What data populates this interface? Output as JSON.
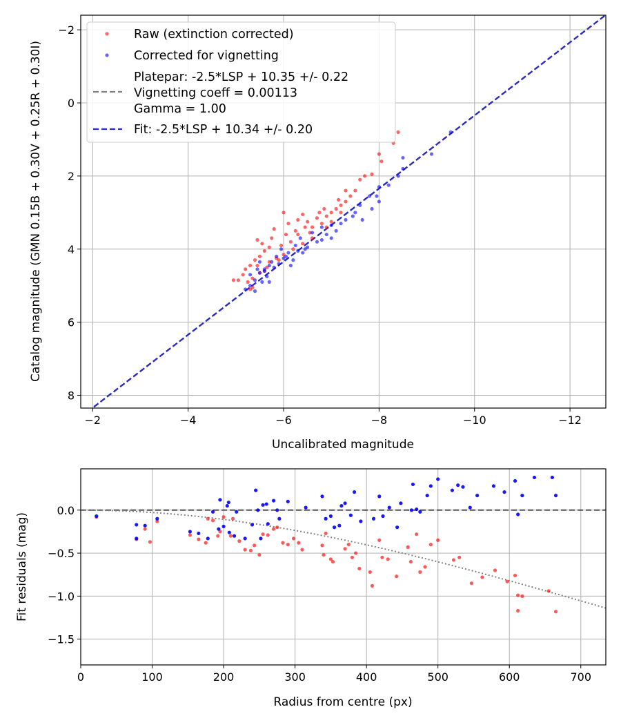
{
  "chart_data": [
    {
      "type": "scatter",
      "title": "",
      "xlabel": "Uncalibrated magnitude",
      "ylabel": "Catalog magnitude (GMN 0.15B + 0.30V + 0.25R + 0.30I)",
      "xlim": [
        -1.75,
        -12.75
      ],
      "ylim": [
        8.35,
        -2.4
      ],
      "xticks": [
        -2,
        -4,
        -6,
        -8,
        -10,
        -12
      ],
      "xtick_labels": [
        "−2",
        "−4",
        "−6",
        "−8",
        "−10",
        "−12"
      ],
      "yticks": [
        -2,
        0,
        2,
        4,
        6,
        8
      ],
      "ytick_labels": [
        "−2",
        "0",
        "2",
        "4",
        "6",
        "8"
      ],
      "grid": true,
      "legend_position": "top-left",
      "legend": {
        "raw": "Raw (extinction corrected)",
        "corrected": "Corrected for vignetting",
        "platepar_line1": "Platepar: -2.5*LSP + 10.35 +/- 0.22",
        "platepar_line2": "Vignetting coeff = 0.00113",
        "platepar_line3": "Gamma = 1.00",
        "fit": "Fit: -2.5*LSP + 10.34 +/- 0.20"
      },
      "fit_line": {
        "slope": 1.0,
        "intercept": 10.34,
        "x_range": [
          -1.75,
          -12.75
        ]
      },
      "colors": {
        "raw": "#ff0000",
        "corrected": "#0000ff",
        "platepar": "#808080",
        "fit": "#2828c8"
      },
      "series": [
        {
          "name": "raw",
          "points": [
            [
              -8.4,
              0.8
            ],
            [
              -8.3,
              1.1
            ],
            [
              -8.0,
              1.4
            ],
            [
              -8.05,
              1.6
            ],
            [
              -7.85,
              1.95
            ],
            [
              -7.7,
              2.0
            ],
            [
              -7.5,
              2.4
            ],
            [
              -7.4,
              2.55
            ],
            [
              -7.3,
              2.7
            ],
            [
              -7.2,
              2.8
            ],
            [
              -7.1,
              2.9
            ],
            [
              -7.0,
              3.0
            ],
            [
              -7.0,
              3.25
            ],
            [
              -6.9,
              3.1
            ],
            [
              -6.8,
              3.3
            ],
            [
              -6.75,
              3.0
            ],
            [
              -6.6,
              3.4
            ],
            [
              -6.5,
              3.25
            ],
            [
              -6.4,
              3.05
            ],
            [
              -6.3,
              3.2
            ],
            [
              -6.25,
              3.5
            ],
            [
              -6.1,
              3.3
            ],
            [
              -6.05,
              3.6
            ],
            [
              -6.0,
              3.0
            ],
            [
              -5.95,
              3.9
            ],
            [
              -5.8,
              3.45
            ],
            [
              -5.75,
              3.7
            ],
            [
              -5.7,
              3.95
            ],
            [
              -5.6,
              4.05
            ],
            [
              -5.55,
              3.85
            ],
            [
              -5.45,
              3.75
            ],
            [
              -5.5,
              4.2
            ],
            [
              -5.4,
              4.3
            ],
            [
              -5.3,
              4.45
            ],
            [
              -5.2,
              4.55
            ],
            [
              -5.15,
              4.7
            ],
            [
              -5.25,
              4.9
            ],
            [
              -5.05,
              4.85
            ],
            [
              -4.95,
              4.85
            ],
            [
              -5.35,
              5.05
            ],
            [
              -5.3,
              5.1
            ],
            [
              -5.6,
              4.6
            ],
            [
              -5.7,
              4.35
            ],
            [
              -5.85,
              4.25
            ],
            [
              -6.0,
              4.15
            ],
            [
              -6.15,
              3.8
            ],
            [
              -6.3,
              3.6
            ],
            [
              -6.45,
              3.4
            ],
            [
              -6.55,
              3.55
            ],
            [
              -6.7,
              3.15
            ],
            [
              -6.85,
              2.9
            ],
            [
              -7.15,
              2.65
            ],
            [
              -7.3,
              2.4
            ],
            [
              -7.6,
              2.1
            ],
            [
              -7.2,
              3.0
            ],
            [
              -6.9,
              3.4
            ],
            [
              -6.6,
              3.7
            ],
            [
              -6.4,
              3.85
            ],
            [
              -6.2,
              4.0
            ],
            [
              -5.9,
              4.3
            ],
            [
              -5.65,
              4.5
            ],
            [
              -5.45,
              4.45
            ],
            [
              -5.5,
              4.65
            ],
            [
              -5.35,
              4.8
            ]
          ]
        },
        {
          "name": "corrected",
          "points": [
            [
              -9.5,
              0.8
            ],
            [
              -9.1,
              1.4
            ],
            [
              -8.5,
              1.8
            ],
            [
              -8.4,
              2.0
            ],
            [
              -8.5,
              1.5
            ],
            [
              -8.2,
              2.25
            ],
            [
              -8.0,
              2.3
            ],
            [
              -8.0,
              2.7
            ],
            [
              -7.8,
              2.55
            ],
            [
              -7.6,
              2.8
            ],
            [
              -7.5,
              3.0
            ],
            [
              -7.3,
              3.2
            ],
            [
              -7.1,
              3.5
            ],
            [
              -7.0,
              3.35
            ],
            [
              -6.9,
              3.6
            ],
            [
              -6.8,
              3.75
            ],
            [
              -6.7,
              3.8
            ],
            [
              -6.5,
              3.95
            ],
            [
              -6.4,
              4.1
            ],
            [
              -6.3,
              4.05
            ],
            [
              -6.2,
              4.3
            ],
            [
              -6.1,
              4.1
            ],
            [
              -6.0,
              4.25
            ],
            [
              -5.9,
              4.4
            ],
            [
              -5.8,
              4.5
            ],
            [
              -5.7,
              4.45
            ],
            [
              -5.6,
              4.6
            ],
            [
              -5.5,
              4.65
            ],
            [
              -5.4,
              4.85
            ],
            [
              -5.3,
              5.0
            ],
            [
              -5.2,
              5.1
            ],
            [
              -5.4,
              5.15
            ],
            [
              -5.55,
              4.9
            ],
            [
              -5.65,
              4.75
            ],
            [
              -5.75,
              4.35
            ],
            [
              -5.95,
              4.0
            ],
            [
              -6.05,
              4.2
            ],
            [
              -6.25,
              3.9
            ],
            [
              -6.45,
              4.0
            ],
            [
              -6.6,
              3.55
            ],
            [
              -6.8,
              3.4
            ],
            [
              -7.0,
              3.7
            ],
            [
              -7.2,
              3.3
            ],
            [
              -7.45,
              3.1
            ],
            [
              -7.65,
              3.2
            ],
            [
              -7.85,
              2.9
            ],
            [
              -5.5,
              4.35
            ],
            [
              -5.45,
              4.55
            ],
            [
              -5.85,
              4.2
            ],
            [
              -6.15,
              4.45
            ],
            [
              -6.35,
              3.7
            ],
            [
              -5.6,
              4.55
            ],
            [
              -7.95,
              2.55
            ],
            [
              -5.3,
              4.7
            ],
            [
              -5.7,
              4.9
            ]
          ]
        }
      ]
    },
    {
      "type": "scatter",
      "title": "",
      "xlabel": "Radius from centre (px)",
      "ylabel": "Fit residuals (mag)",
      "xlim": [
        0,
        735
      ],
      "ylim": [
        -1.8,
        0.48
      ],
      "xticks": [
        0,
        100,
        200,
        300,
        400,
        500,
        600,
        700
      ],
      "xtick_labels": [
        "0",
        "100",
        "200",
        "300",
        "400",
        "500",
        "600",
        "700"
      ],
      "yticks": [
        0.0,
        -0.5,
        -1.0,
        -1.5
      ],
      "ytick_labels": [
        "0.0",
        "−0.5",
        "−1.0",
        "−1.5"
      ],
      "grid": true,
      "zero_line": 0,
      "vignetting_curve": {
        "coeff": 0.00113,
        "gamma": 1.0
      },
      "colors": {
        "raw": "#ff0000",
        "corrected": "#0000ff",
        "zero": "#505050",
        "curve": "#808080"
      },
      "series": [
        {
          "name": "raw",
          "points": [
            [
              22,
              -0.08
            ],
            [
              78,
              -0.34
            ],
            [
              90,
              -0.22
            ],
            [
              97,
              -0.37
            ],
            [
              107,
              -0.13
            ],
            [
              153,
              -0.29
            ],
            [
              165,
              -0.34
            ],
            [
              175,
              -0.38
            ],
            [
              178,
              -0.1
            ],
            [
              185,
              -0.12
            ],
            [
              192,
              -0.3
            ],
            [
              195,
              -0.25
            ],
            [
              200,
              -0.08
            ],
            [
              210,
              -0.3
            ],
            [
              213,
              -0.1
            ],
            [
              222,
              -0.36
            ],
            [
              230,
              -0.46
            ],
            [
              238,
              -0.47
            ],
            [
              243,
              -0.41
            ],
            [
              250,
              -0.52
            ],
            [
              255,
              -0.28
            ],
            [
              262,
              -0.29
            ],
            [
              270,
              -0.22
            ],
            [
              275,
              -0.2
            ],
            [
              283,
              -0.38
            ],
            [
              290,
              -0.4
            ],
            [
              298,
              -0.33
            ],
            [
              305,
              -0.38
            ],
            [
              310,
              -0.46
            ],
            [
              338,
              -0.41
            ],
            [
              340,
              -0.52
            ],
            [
              343,
              -0.27
            ],
            [
              350,
              -0.57
            ],
            [
              353,
              -0.6
            ],
            [
              370,
              -0.45
            ],
            [
              375,
              -0.4
            ],
            [
              380,
              -0.55
            ],
            [
              385,
              -0.5
            ],
            [
              390,
              -0.68
            ],
            [
              405,
              -0.72
            ],
            [
              408,
              -0.88
            ],
            [
              418,
              -0.35
            ],
            [
              422,
              -0.55
            ],
            [
              430,
              -0.57
            ],
            [
              442,
              -0.77
            ],
            [
              458,
              -0.43
            ],
            [
              462,
              -0.6
            ],
            [
              470,
              -0.28
            ],
            [
              475,
              -0.72
            ],
            [
              482,
              -0.66
            ],
            [
              490,
              -0.4
            ],
            [
              500,
              -0.35
            ],
            [
              522,
              -0.58
            ],
            [
              530,
              -0.55
            ],
            [
              547,
              -0.85
            ],
            [
              562,
              -0.78
            ],
            [
              580,
              -0.7
            ],
            [
              597,
              -0.83
            ],
            [
              608,
              -0.76
            ],
            [
              612,
              -0.99
            ],
            [
              618,
              -1.0
            ],
            [
              612,
              -1.17
            ],
            [
              655,
              -0.94
            ],
            [
              665,
              -1.18
            ]
          ]
        },
        {
          "name": "corrected",
          "points": [
            [
              22,
              -0.07
            ],
            [
              78,
              -0.17
            ],
            [
              90,
              -0.18
            ],
            [
              78,
              -0.33
            ],
            [
              107,
              -0.1
            ],
            [
              153,
              -0.25
            ],
            [
              165,
              -0.27
            ],
            [
              178,
              -0.33
            ],
            [
              185,
              -0.02
            ],
            [
              195,
              0.12
            ],
            [
              193,
              -0.22
            ],
            [
              200,
              -0.19
            ],
            [
              205,
              0.05
            ],
            [
              207,
              0.09
            ],
            [
              208,
              -0.26
            ],
            [
              215,
              -0.3
            ],
            [
              218,
              -0.02
            ],
            [
              230,
              -0.33
            ],
            [
              240,
              -0.17
            ],
            [
              245,
              0.23
            ],
            [
              248,
              0.0
            ],
            [
              252,
              -0.33
            ],
            [
              255,
              0.06
            ],
            [
              260,
              0.07
            ],
            [
              262,
              -0.16
            ],
            [
              270,
              0.11
            ],
            [
              275,
              0.0
            ],
            [
              278,
              -0.1
            ],
            [
              290,
              0.1
            ],
            [
              315,
              0.03
            ],
            [
              338,
              0.16
            ],
            [
              343,
              -0.1
            ],
            [
              350,
              -0.07
            ],
            [
              355,
              -0.2
            ],
            [
              362,
              -0.18
            ],
            [
              365,
              0.05
            ],
            [
              370,
              0.08
            ],
            [
              378,
              -0.06
            ],
            [
              383,
              0.21
            ],
            [
              392,
              -0.13
            ],
            [
              410,
              -0.1
            ],
            [
              418,
              0.16
            ],
            [
              423,
              -0.07
            ],
            [
              432,
              0.03
            ],
            [
              443,
              -0.2
            ],
            [
              448,
              0.08
            ],
            [
              463,
              0.0
            ],
            [
              465,
              0.3
            ],
            [
              470,
              0.01
            ],
            [
              475,
              -0.02
            ],
            [
              485,
              0.17
            ],
            [
              490,
              0.28
            ],
            [
              500,
              0.36
            ],
            [
              520,
              0.23
            ],
            [
              528,
              0.29
            ],
            [
              535,
              0.27
            ],
            [
              545,
              0.03
            ],
            [
              555,
              0.17
            ],
            [
              578,
              0.28
            ],
            [
              593,
              0.21
            ],
            [
              608,
              0.34
            ],
            [
              612,
              -0.05
            ],
            [
              618,
              0.17
            ],
            [
              635,
              0.38
            ],
            [
              660,
              0.38
            ],
            [
              665,
              0.17
            ]
          ]
        }
      ]
    }
  ]
}
